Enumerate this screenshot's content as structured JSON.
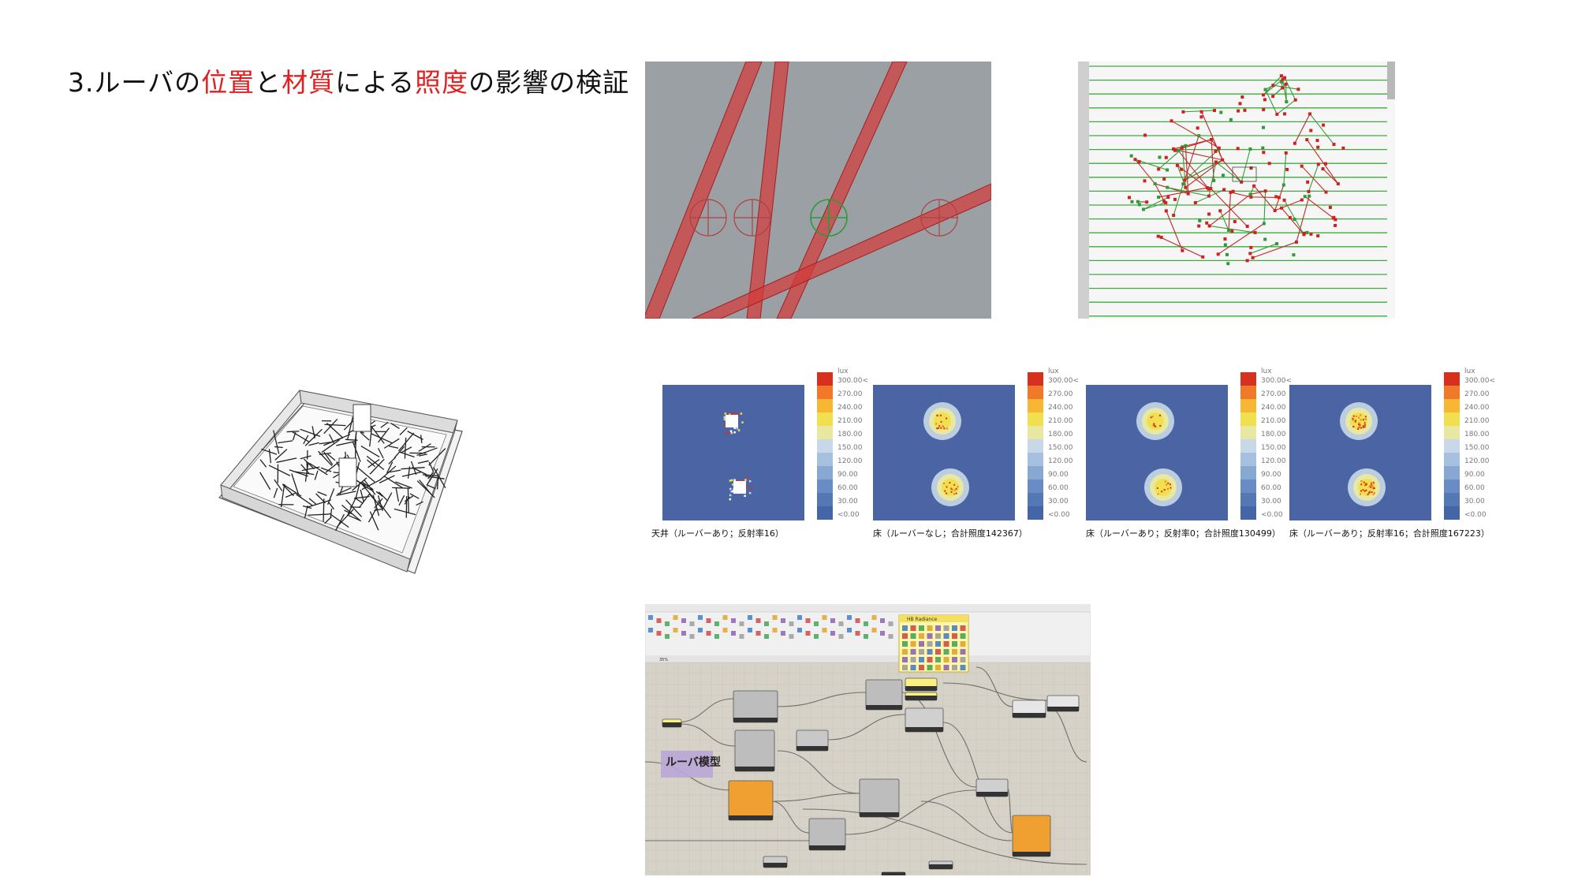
{
  "title": {
    "prefix": "3.ルーバの",
    "w1": "位置",
    "mid1": "と",
    "w2": "材質",
    "mid2": "による",
    "w3": "照度",
    "suffix": "の影響の検証",
    "highlight_color": "#e02020"
  },
  "heatmaps": [
    {
      "caption": "天井（ルーバーあり；反射率16）"
    },
    {
      "caption": "床（ルーバーなし；合計照度142367）"
    },
    {
      "caption": "床（ルーバーあり；反射率0；合計照度130499）"
    },
    {
      "caption": "床（ルーバーあり；反射率16；合計照度167223）"
    }
  ],
  "legend": {
    "unit": "lux",
    "labels": [
      "300.00<",
      "270.00",
      "240.00",
      "210.00",
      "180.00",
      "150.00",
      "120.00",
      "90.00",
      "60.00",
      "30.00",
      "<0.00"
    ],
    "colors": [
      "#d7301f",
      "#f07a2a",
      "#f7b733",
      "#f0e050",
      "#e8e8a0",
      "#c8d8e8",
      "#a8c0e0",
      "#88a8d4",
      "#6a8cc4",
      "#5478b4",
      "#4466a8"
    ]
  },
  "grasshopper": {
    "group_label": "ルーバ模型",
    "popup_title": "HB Radiance",
    "zoom": "35%"
  }
}
